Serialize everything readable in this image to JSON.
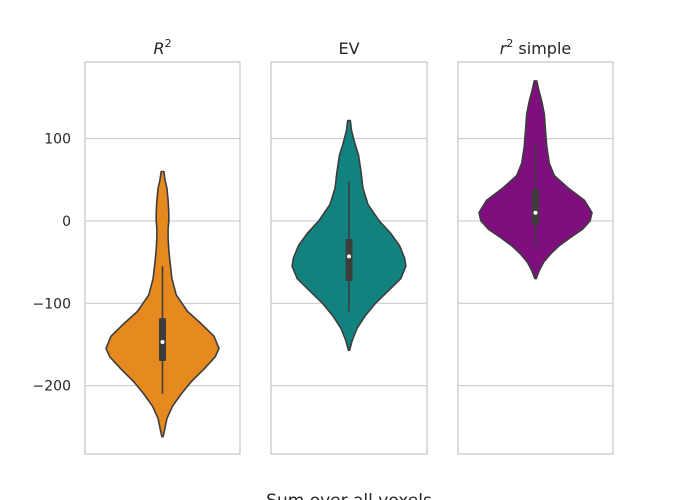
{
  "chart_data": {
    "type": "violin",
    "xlabel": "Sum over all voxels",
    "ylim": [
      -283,
      193
    ],
    "yticks": [
      {
        "value": 100,
        "label": "100"
      },
      {
        "value": 0,
        "label": "0"
      },
      {
        "value": -100,
        "label": "−100"
      },
      {
        "value": -200,
        "label": "−200"
      }
    ],
    "grid": true,
    "panels": [
      {
        "title_base": "R",
        "title_sup": "2",
        "title_rest": "",
        "color": "#E68A1F",
        "min": -262,
        "max": 60,
        "whisker_low": -210,
        "whisker_high": -55,
        "q1": -170,
        "q3": -118,
        "median": -147,
        "density": [
          [
            60,
            0.02
          ],
          [
            50,
            0.04
          ],
          [
            40,
            0.07
          ],
          [
            25,
            0.09
          ],
          [
            10,
            0.1
          ],
          [
            0,
            0.1
          ],
          [
            -10,
            0.09
          ],
          [
            -20,
            0.09
          ],
          [
            -35,
            0.1
          ],
          [
            -50,
            0.12
          ],
          [
            -70,
            0.15
          ],
          [
            -90,
            0.22
          ],
          [
            -110,
            0.4
          ],
          [
            -125,
            0.62
          ],
          [
            -140,
            0.82
          ],
          [
            -155,
            0.9
          ],
          [
            -165,
            0.84
          ],
          [
            -180,
            0.66
          ],
          [
            -195,
            0.46
          ],
          [
            -210,
            0.3
          ],
          [
            -225,
            0.16
          ],
          [
            -240,
            0.07
          ],
          [
            -255,
            0.03
          ],
          [
            -262,
            0.01
          ]
        ]
      },
      {
        "title_base": "EV",
        "title_sup": "",
        "title_rest": "",
        "color": "#12827E",
        "min": -157,
        "max": 122,
        "whisker_low": -110,
        "whisker_high": 48,
        "q1": -73,
        "q3": -22,
        "median": -43,
        "density": [
          [
            122,
            0.02
          ],
          [
            110,
            0.04
          ],
          [
            95,
            0.09
          ],
          [
            80,
            0.15
          ],
          [
            60,
            0.19
          ],
          [
            40,
            0.22
          ],
          [
            20,
            0.3
          ],
          [
            0,
            0.48
          ],
          [
            -15,
            0.66
          ],
          [
            -30,
            0.8
          ],
          [
            -45,
            0.88
          ],
          [
            -55,
            0.9
          ],
          [
            -70,
            0.82
          ],
          [
            -85,
            0.62
          ],
          [
            -100,
            0.42
          ],
          [
            -115,
            0.26
          ],
          [
            -130,
            0.13
          ],
          [
            -145,
            0.05
          ],
          [
            -157,
            0.01
          ]
        ]
      },
      {
        "title_base": "r",
        "title_sup": "2",
        "title_rest": " simple",
        "color": "#7F0F7F",
        "min": -70,
        "max": 170,
        "whisker_low": -30,
        "whisker_high": 92,
        "q1": -5,
        "q3": 38,
        "median": 10,
        "density": [
          [
            170,
            0.02
          ],
          [
            160,
            0.05
          ],
          [
            145,
            0.1
          ],
          [
            130,
            0.14
          ],
          [
            110,
            0.16
          ],
          [
            90,
            0.18
          ],
          [
            70,
            0.22
          ],
          [
            55,
            0.3
          ],
          [
            40,
            0.52
          ],
          [
            25,
            0.78
          ],
          [
            10,
            0.9
          ],
          [
            0,
            0.87
          ],
          [
            -10,
            0.75
          ],
          [
            -20,
            0.56
          ],
          [
            -30,
            0.38
          ],
          [
            -40,
            0.24
          ],
          [
            -50,
            0.13
          ],
          [
            -60,
            0.06
          ],
          [
            -70,
            0.01
          ]
        ]
      }
    ]
  }
}
